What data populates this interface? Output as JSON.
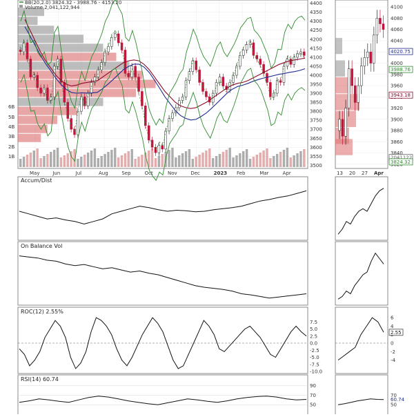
{
  "chart_data": {
    "type": "financial_multi_panel",
    "main": {
      "legend_bb": "BB(20,2.0) 3824.32 - 3988.76 - 4153.20",
      "legend_vol": "Volume 2,041,122,944",
      "price_axis": [
        "4400",
        "4350",
        "4300",
        "4250",
        "4200",
        "4150",
        "4100",
        "4050",
        "4000",
        "3950",
        "3900",
        "3850",
        "3800",
        "3750",
        "3700",
        "3650",
        "3600",
        "3550",
        "3500"
      ],
      "volume_axis": [
        "6B",
        "5B",
        "4B",
        "3B",
        "2B",
        "1B"
      ],
      "months": [
        "May",
        "Jun",
        "Jul",
        "Aug",
        "Sep",
        "Oct",
        "Nov",
        "Dec",
        "2023",
        "Feb",
        "Mar",
        "Apr"
      ],
      "ylim": [
        3490,
        4410
      ],
      "close_series": [
        4130,
        4180,
        4090,
        3990,
        4000,
        3930,
        3900,
        3930,
        3860,
        3880,
        4050,
        4090,
        3960,
        3850,
        3760,
        3700,
        3670,
        3800,
        3880,
        3830,
        3900,
        3960,
        3990,
        4030,
        4070,
        4130,
        4160,
        4210,
        4230,
        4180,
        4140,
        4010,
        3990,
        4050,
        3990,
        3910,
        3830,
        3720,
        3640,
        3600,
        3570,
        3610,
        3590,
        3690,
        3760,
        3790,
        3820,
        3860,
        3880,
        3970,
        4020,
        4080,
        4030,
        3960,
        3910,
        3880,
        3850,
        3900,
        3960,
        3990,
        3940,
        3920,
        3960,
        4000,
        4050,
        4110,
        4140,
        4170,
        4180,
        4110,
        4090,
        4060,
        4010,
        3960,
        3880,
        3900,
        3970,
        3960,
        4050,
        4090,
        4060,
        4100,
        4120,
        4130,
        4110
      ],
      "ma_series": [
        4310,
        4250,
        4190,
        4130,
        4080,
        4040,
        4000,
        3970,
        3950,
        3940,
        3945,
        3955,
        3960,
        3965,
        3970,
        3990,
        4010,
        4030,
        4050,
        4070,
        4080,
        4085,
        4080,
        4060,
        4030,
        3990,
        3950,
        3910,
        3880,
        3850,
        3830,
        3820,
        3815,
        3820,
        3835,
        3850,
        3870,
        3890,
        3910,
        3930,
        3945,
        3955,
        3960,
        3970,
        3985,
        4000,
        4015,
        4030,
        4045,
        4060,
        4070,
        4080,
        4085,
        4090,
        4095
      ],
      "last_bb_upper": "4153.20",
      "last_bb_mid": "3988.76",
      "last_bb_lower": "3824.32"
    },
    "side_panel": {
      "price_axis": [
        "4100",
        "4080",
        "4060",
        "4040",
        "4020",
        "4000",
        "3980",
        "3960",
        "3940",
        "3920",
        "3900",
        "3880",
        "3860",
        "3840",
        "3820"
      ],
      "ylim": [
        3815,
        4110
      ],
      "x_labels": [
        "13",
        "20",
        "27",
        "Apr"
      ],
      "close_series": [
        3900,
        3870,
        3920,
        3990,
        3960,
        3930,
        3960,
        3995,
        4010,
        4020,
        4000,
        4050,
        4080,
        4070,
        4060
      ],
      "value_tags": [
        {
          "label": "4020.75",
          "value": 4020.75,
          "color": "#1f2a8f"
        },
        {
          "label": "3988.76",
          "value": 3988.76,
          "color": "#2f8b2f"
        },
        {
          "label": "3943.18",
          "value": 3943.18,
          "color": "#8b0a2a"
        },
        {
          "label": "2041122",
          "value": 3832,
          "color": "#666666"
        },
        {
          "label": "3824.32",
          "value": 3824.32,
          "color": "#2f8b2f"
        }
      ]
    },
    "accum_dist": {
      "title": "Accum/Dist",
      "series": [
        0.55,
        0.5,
        0.45,
        0.4,
        0.42,
        0.38,
        0.35,
        0.3,
        0.35,
        0.4,
        0.5,
        0.55,
        0.6,
        0.65,
        0.62,
        0.58,
        0.55,
        0.57,
        0.56,
        0.54,
        0.55,
        0.58,
        0.6,
        0.62,
        0.65,
        0.7,
        0.75,
        0.78,
        0.82,
        0.85,
        0.9,
        0.95
      ],
      "side_series": [
        0.1,
        0.2,
        0.35,
        0.3,
        0.45,
        0.55,
        0.6,
        0.55,
        0.7,
        0.85,
        0.95,
        1.0
      ]
    },
    "obv": {
      "title": "On Balance Vol",
      "series": [
        0.9,
        0.88,
        0.86,
        0.82,
        0.8,
        0.75,
        0.72,
        0.74,
        0.7,
        0.66,
        0.68,
        0.64,
        0.6,
        0.62,
        0.58,
        0.55,
        0.5,
        0.45,
        0.4,
        0.35,
        0.32,
        0.3,
        0.28,
        0.25,
        0.2,
        0.18,
        0.15,
        0.12,
        0.14,
        0.16,
        0.18,
        0.2
      ],
      "side_series": [
        0.1,
        0.15,
        0.25,
        0.2,
        0.35,
        0.45,
        0.55,
        0.6,
        0.8,
        0.95,
        0.85,
        0.75
      ]
    },
    "roc": {
      "title": "ROC(12) 2.55%",
      "ticks": [
        "7.5",
        "5.0",
        "2.5",
        "0.0",
        "-2.5",
        "-5.0",
        "-7.5",
        "-10.0"
      ],
      "side_ticks": [
        "6",
        "4",
        "2",
        "0",
        "-2",
        "-4"
      ],
      "last_value": "2.55",
      "ylim": [
        -10,
        10
      ],
      "series": [
        -2,
        -4,
        -8,
        -6,
        -3,
        2,
        5,
        8,
        6,
        2,
        -5,
        -9,
        -7,
        -3,
        4,
        9,
        8,
        6,
        3,
        -2,
        -6,
        -8,
        -5,
        -1,
        3,
        6,
        9,
        7,
        4,
        -1,
        -6,
        -9,
        -8,
        -4,
        0,
        4,
        8,
        6,
        3,
        -2,
        -3,
        -1,
        1,
        3,
        5,
        6,
        4,
        2,
        -1,
        -4,
        -5,
        -2,
        1,
        4,
        6,
        4,
        2.5
      ],
      "side_series": [
        -4,
        -3,
        -2,
        -1,
        2,
        4,
        6,
        5,
        2.55
      ]
    },
    "rsi": {
      "title": "RSI(14) 60.74",
      "ticks": [
        "90",
        "70",
        "50"
      ],
      "side_ticks": [
        "70",
        "60.74",
        "50"
      ],
      "last_value": "60.74",
      "series": [
        55,
        58,
        62,
        60,
        57,
        55,
        60,
        65,
        68,
        66,
        62,
        58,
        55,
        52,
        50,
        54,
        58,
        62,
        60,
        57,
        55,
        58,
        62,
        65,
        67,
        68,
        66,
        62,
        60,
        61
      ],
      "side_series": [
        50,
        52,
        55,
        58,
        60,
        62,
        61,
        60.74
      ]
    }
  }
}
